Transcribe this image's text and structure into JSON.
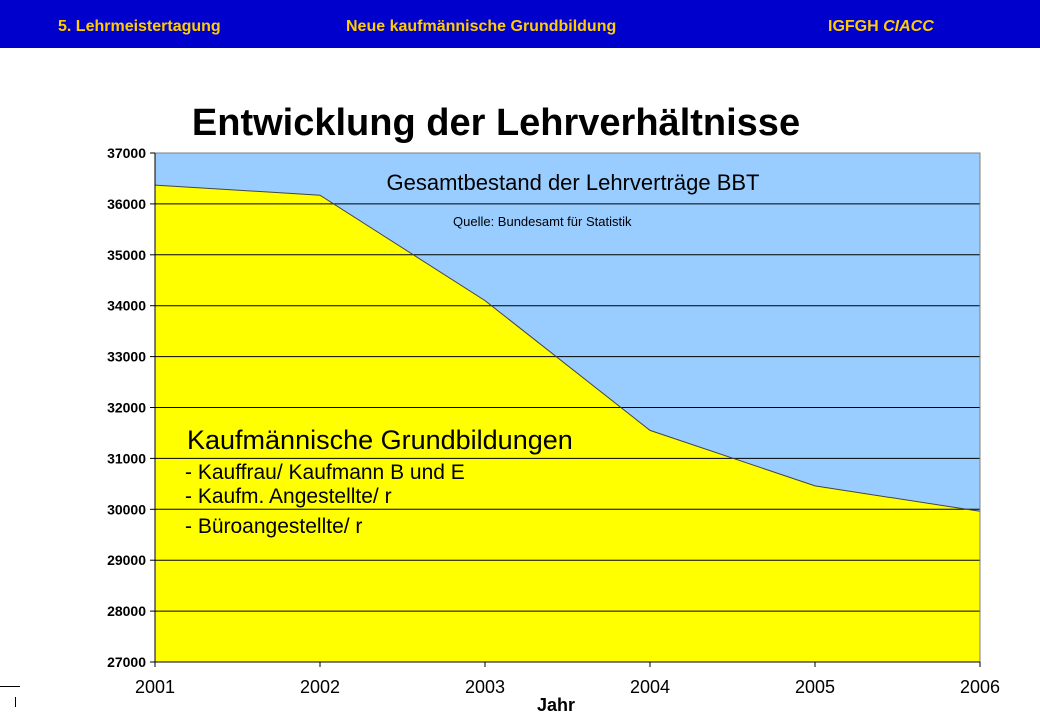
{
  "header": {
    "left": "5. Lehrmeistertagung",
    "center": "Neue kaufmännische Grundbildung",
    "right_plain": "IGFGH",
    "right_italic": "CIACC"
  },
  "colors": {
    "header_bg": "#0000cc",
    "header_text": "#ffcc00",
    "plot_bg": "#99ccff",
    "area_fill": "#ffff00"
  },
  "chart_data": {
    "type": "area",
    "title": "Entwicklung der Lehrverhältnisse",
    "xlabel": "Jahr",
    "ylabel": "",
    "x": [
      "2001",
      "2002",
      "2003",
      "2004",
      "2005",
      "2006"
    ],
    "ylim": [
      27000,
      37000
    ],
    "yticks": [
      37000,
      36000,
      35000,
      34000,
      33000,
      32000,
      31000,
      30000,
      29000,
      28000,
      27000
    ],
    "grid": true,
    "series": [
      {
        "name": "Gesamtbestand der Lehrverträge BBT",
        "values": [
          36370,
          36170,
          34100,
          31550,
          30460,
          29960
        ]
      }
    ],
    "annotations": {
      "series_title": "Gesamtbestand der Lehrverträge BBT",
      "source": "Quelle: Bundesamt für Statistik",
      "area_heading": "Kaufmännische Grundbildungen",
      "area_items": [
        "- Kauffrau/ Kaufmann B und E",
        "- Kaufm. Angestellte/ r",
        "- Büroangestellte/ r"
      ]
    }
  }
}
